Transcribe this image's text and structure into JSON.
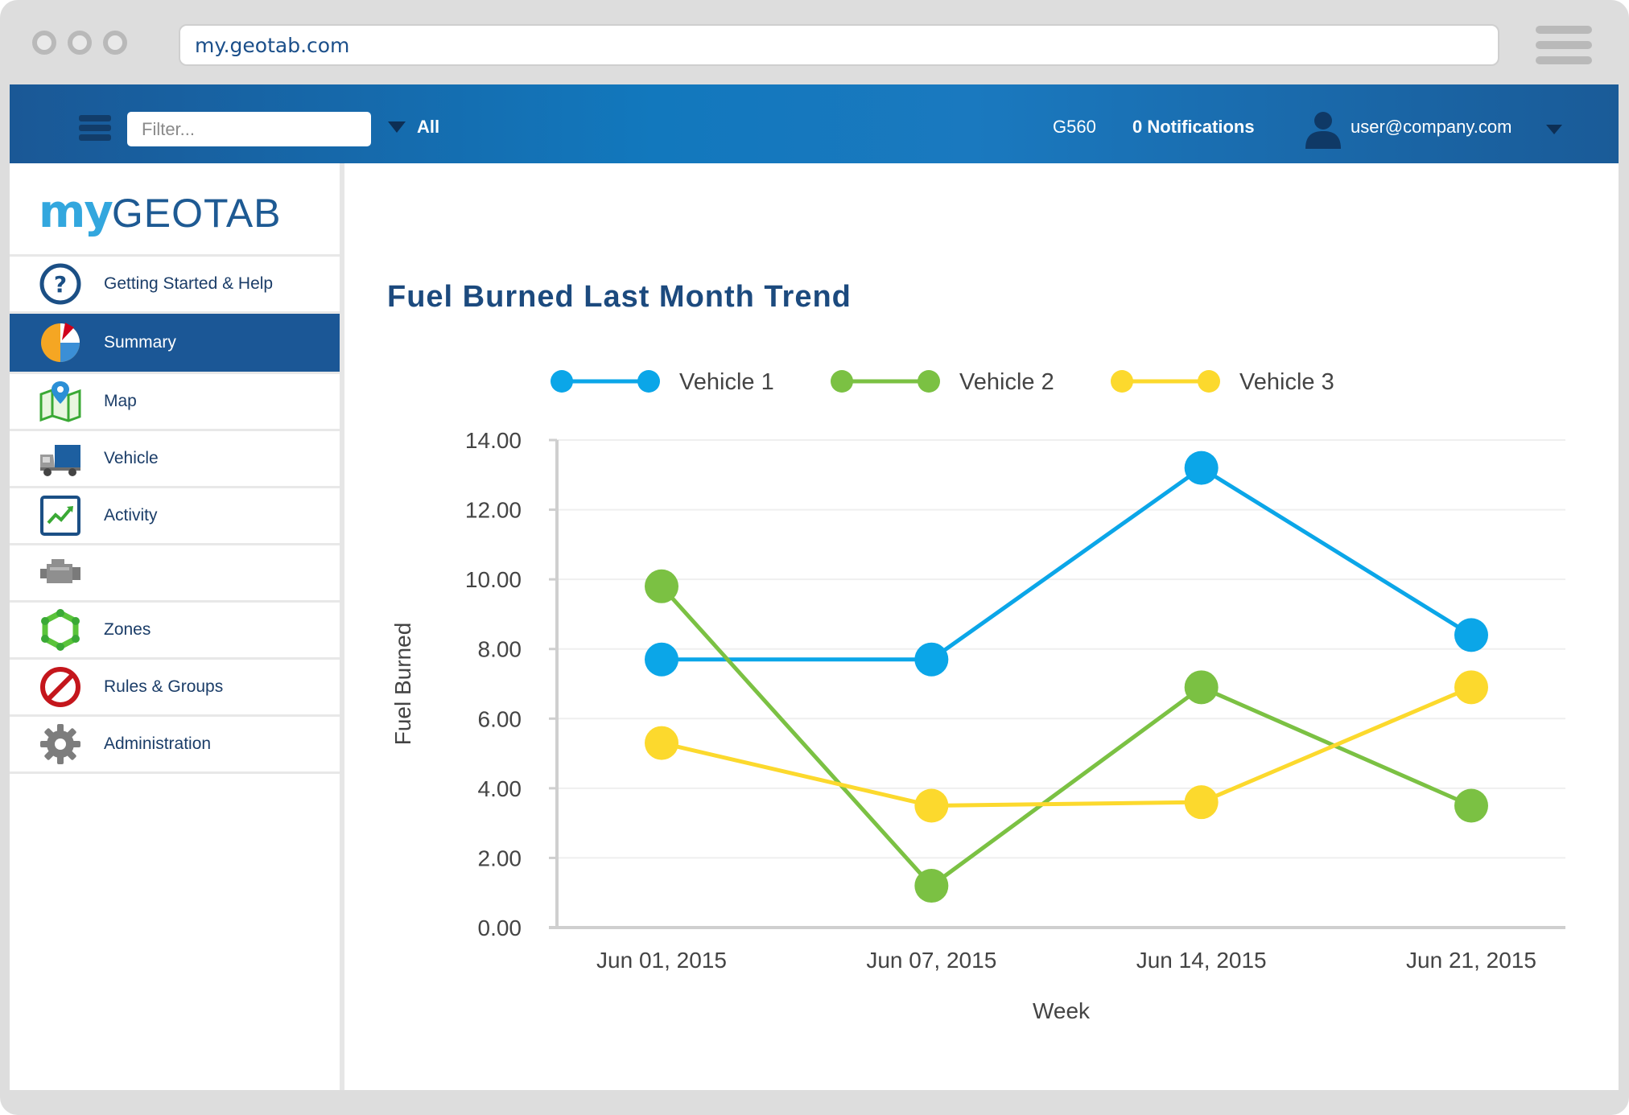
{
  "browser": {
    "url": "my.geotab.com"
  },
  "topbar": {
    "filter_placeholder": "Filter...",
    "scope_label": "All",
    "database": "G560",
    "notifications": "0 Notifications",
    "user_email": "user@company.com"
  },
  "logo": {
    "part1": "my",
    "part2": "GEOTAB"
  },
  "sidebar": {
    "items": [
      {
        "label": "Getting Started & Help",
        "icon": "help-icon"
      },
      {
        "label": "Summary",
        "icon": "pie-chart-icon",
        "active": true
      },
      {
        "label": "Map",
        "icon": "map-icon"
      },
      {
        "label": "Vehicle",
        "icon": "truck-icon"
      },
      {
        "label": "Activity",
        "icon": "activity-chart-icon"
      },
      {
        "label": "",
        "icon": "engine-icon"
      },
      {
        "label": "Zones",
        "icon": "zones-icon"
      },
      {
        "label": "Rules & Groups",
        "icon": "prohibited-icon"
      },
      {
        "label": "Administration",
        "icon": "gear-icon"
      }
    ]
  },
  "chart_data": {
    "type": "line",
    "title": "Fuel Burned Last Month Trend",
    "xlabel": "Week",
    "ylabel": "Fuel Burned",
    "categories": [
      "Jun 01, 2015",
      "Jun 07, 2015",
      "Jun 14, 2015",
      "Jun 21, 2015"
    ],
    "ylim": [
      0,
      14
    ],
    "yticks": [
      "0.00",
      "2.00",
      "4.00",
      "6.00",
      "8.00",
      "10.00",
      "12.00",
      "14.00"
    ],
    "legend_position": "top",
    "grid": true,
    "series": [
      {
        "name": "Vehicle 1",
        "color": "#0ba6e8",
        "values": [
          7.7,
          7.7,
          13.2,
          8.4
        ]
      },
      {
        "name": "Vehicle 2",
        "color": "#7bc143",
        "values": [
          9.8,
          1.2,
          6.9,
          3.5
        ]
      },
      {
        "name": "Vehicle 3",
        "color": "#fcd92d",
        "values": [
          5.3,
          3.5,
          3.6,
          6.9
        ]
      }
    ]
  }
}
